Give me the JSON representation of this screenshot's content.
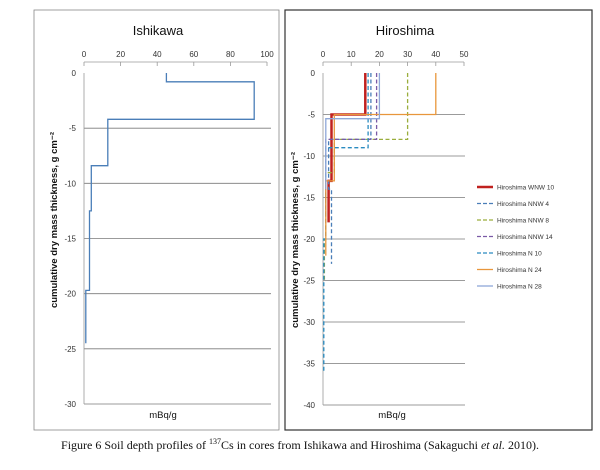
{
  "chart_data": [
    {
      "type": "line",
      "title": "Ishikawa",
      "xlabel": "mBq/g",
      "ylabel": "cumulative dry mass thickness, g cm⁻²",
      "xlim": [
        0,
        100
      ],
      "ylim": [
        -30,
        0
      ],
      "xticks": [
        0,
        20,
        40,
        60,
        80,
        100
      ],
      "yticks": [
        0,
        -5,
        -10,
        -15,
        -20,
        -25,
        -30
      ],
      "grid": "horizontal",
      "series": [
        {
          "color": "#4a7eb8",
          "style": "solid",
          "points": [
            [
              45,
              0
            ],
            [
              45,
              -0.8
            ],
            [
              93,
              -0.8
            ],
            [
              93,
              -4.2
            ],
            [
              13,
              -4.2
            ],
            [
              13,
              -8.4
            ],
            [
              4,
              -8.4
            ],
            [
              4,
              -12.5
            ],
            [
              3,
              -12.5
            ],
            [
              3,
              -19.7
            ],
            [
              1,
              -19.7
            ],
            [
              1,
              -24.5
            ]
          ]
        }
      ]
    },
    {
      "type": "line",
      "title": "Hiroshima",
      "xlabel": "mBq/g",
      "ylabel": "cumulative dry mass thickness, g cm⁻²",
      "xlim": [
        0,
        50
      ],
      "ylim": [
        -40,
        0
      ],
      "xticks": [
        0,
        10,
        20,
        30,
        40,
        50
      ],
      "yticks": [
        0,
        -5,
        -10,
        -15,
        -20,
        -25,
        -30,
        -35,
        -40
      ],
      "grid": "horizontal",
      "legend_position": "right",
      "series": [
        {
          "name": "Hiroshima WNW 10",
          "color": "#c0211f",
          "style": "solid",
          "width": 2.5,
          "points": [
            [
              15,
              0
            ],
            [
              15,
              -5
            ],
            [
              3,
              -5
            ],
            [
              3,
              -13
            ],
            [
              2,
              -13
            ],
            [
              2,
              -18
            ]
          ]
        },
        {
          "name": "Hiroshima NNW 4",
          "color": "#4a7eb8",
          "style": "dashed",
          "points": [
            [
              17,
              0
            ],
            [
              17,
              -8
            ],
            [
              2,
              -8
            ],
            [
              2,
              -14
            ],
            [
              3,
              -14
            ],
            [
              3,
              -23
            ]
          ]
        },
        {
          "name": "Hiroshima NNW 8",
          "color": "#9aae3c",
          "style": "dashed",
          "points": [
            [
              30,
              0
            ],
            [
              30,
              -8
            ],
            [
              4,
              -8
            ],
            [
              4,
              -12
            ],
            [
              1,
              -12
            ],
            [
              1,
              -20
            ],
            [
              0.5,
              -20
            ],
            [
              0.5,
              -25
            ]
          ]
        },
        {
          "name": "Hiroshima NNW 14",
          "color": "#7a5aa6",
          "style": "dashed",
          "points": [
            [
              19,
              0
            ],
            [
              19,
              -8
            ],
            [
              1,
              -8
            ],
            [
              1,
              -17
            ]
          ]
        },
        {
          "name": "Hiroshima N 10",
          "color": "#2a8bc0",
          "style": "dashed",
          "points": [
            [
              16,
              0
            ],
            [
              16,
              -9
            ],
            [
              1,
              -9
            ],
            [
              1,
              -20
            ],
            [
              0.3,
              -20
            ],
            [
              0.3,
              -36
            ]
          ]
        },
        {
          "name": "Hiroshima N 24",
          "color": "#e8963c",
          "style": "solid",
          "points": [
            [
              40,
              0
            ],
            [
              40,
              -5
            ],
            [
              4,
              -5
            ],
            [
              4,
              -13
            ],
            [
              1,
              -13
            ],
            [
              1,
              -22
            ]
          ]
        },
        {
          "name": "Hiroshima N 28",
          "color": "#8fa8d8",
          "style": "solid",
          "points": [
            [
              20,
              0
            ],
            [
              20,
              -5.5
            ],
            [
              1,
              -5.5
            ],
            [
              1,
              -14
            ]
          ]
        }
      ]
    }
  ],
  "caption": {
    "prefix": "Figure 6  Soil depth profiles of ",
    "superscript": "137",
    "after_superscript": "Cs in cores from Ishikawa and Hiroshima (Sakaguchi ",
    "italic": "et al.",
    "suffix": " 2010)."
  }
}
